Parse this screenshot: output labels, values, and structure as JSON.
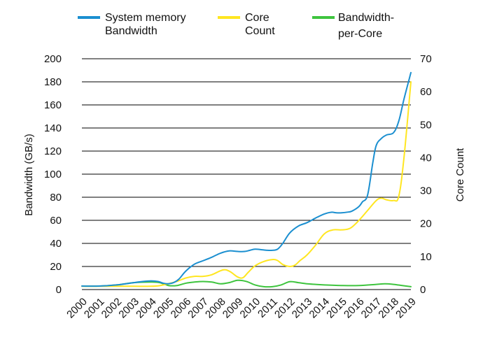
{
  "chart_data": {
    "type": "line",
    "title": "",
    "xlabel": "",
    "ylabel": "Bandwidth (GB/s)",
    "ylabel_right": "Core Count",
    "ylim": [
      0,
      200
    ],
    "ylim_right": [
      0,
      70
    ],
    "yticks": [
      "0",
      "20",
      "40",
      "60",
      "80",
      "100",
      "120",
      "140",
      "160",
      "180",
      "200"
    ],
    "yticks_right": [
      "0",
      "10",
      "20",
      "30",
      "40",
      "50",
      "60",
      "70"
    ],
    "categories": [
      "2000",
      "2001",
      "2002",
      "2003",
      "2004",
      "2005",
      "2006",
      "2007",
      "2008",
      "2009",
      "2010",
      "2011",
      "2012",
      "2013",
      "2014",
      "2015",
      "2016",
      "2017",
      "2018",
      "2019"
    ],
    "grid": true,
    "legend_position": "top",
    "series": [
      {
        "name": "System memory Bandwidth",
        "legend_lines": [
          "System memory",
          "Bandwidth"
        ],
        "color": "#1b8fd0",
        "axis": "left",
        "x": [
          2000,
          2001,
          2002,
          2003,
          2003.5,
          2004,
          2004.4,
          2004.7,
          2005,
          2005.3,
          2005.6,
          2006,
          2006.5,
          2007,
          2007.5,
          2008,
          2008.5,
          2009,
          2009.4,
          2009.7,
          2010,
          2010.4,
          2010.7,
          2011,
          2011.3,
          2011.6,
          2012,
          2012.5,
          2013,
          2013.5,
          2014,
          2014.4,
          2014.7,
          2015,
          2015.3,
          2015.6,
          2016,
          2016.2,
          2016.5,
          2016.8,
          2017,
          2017.3,
          2017.6,
          2018,
          2018.3,
          2018.6,
          2019
        ],
        "values": [
          3,
          3,
          4,
          6,
          7,
          7.5,
          7,
          5.5,
          5,
          6,
          9,
          16,
          22,
          25,
          28,
          31.5,
          33.5,
          33,
          33,
          34,
          35,
          34.5,
          34,
          34,
          35,
          40,
          49,
          55,
          58,
          62,
          65.5,
          67,
          66.5,
          66.5,
          67,
          68,
          72,
          76,
          82,
          110,
          125,
          131,
          134,
          136,
          146,
          165,
          188
        ]
      },
      {
        "name": "Core Count",
        "legend_lines": [
          "Core",
          "Count"
        ],
        "color": "#ffe620",
        "axis": "right",
        "x": [
          2000,
          2001,
          2002,
          2003,
          2004,
          2004.5,
          2005,
          2005.5,
          2006,
          2006.5,
          2007,
          2007.5,
          2008,
          2008.3,
          2008.6,
          2009,
          2009.3,
          2009.6,
          2010,
          2010.5,
          2011,
          2011.3,
          2011.6,
          2012,
          2012.3,
          2012.6,
          2013,
          2013.5,
          2014,
          2014.5,
          2015,
          2015.5,
          2016,
          2016.5,
          2017,
          2017.3,
          2017.6,
          2018,
          2018.3,
          2018.6,
          2019
        ],
        "values": [
          1,
          1,
          1,
          1,
          1,
          1.2,
          1.8,
          2.5,
          3.5,
          4,
          4,
          4.5,
          5.7,
          6,
          5.3,
          3.8,
          3.6,
          5.2,
          7.2,
          8.5,
          9.1,
          8.8,
          7.6,
          7,
          7.4,
          8.8,
          10.5,
          13.5,
          16.9,
          18.1,
          18.1,
          18.6,
          21,
          24,
          27,
          27.7,
          27.2,
          27,
          28.3,
          40,
          63
        ]
      },
      {
        "name": "Bandwidth-per-Core",
        "legend_lines": [
          "Bandwidth-",
          "per-Core"
        ],
        "color": "#3ec43e",
        "axis": "left",
        "x": [
          2000,
          2001,
          2002,
          2003,
          2004,
          2004.5,
          2005,
          2005.5,
          2006,
          2006.5,
          2007,
          2007.5,
          2008,
          2008.5,
          2009,
          2009.5,
          2010,
          2010.5,
          2011,
          2011.5,
          2012,
          2012.5,
          2013,
          2013.5,
          2014,
          2015,
          2016,
          2017,
          2017.5,
          2018,
          2018.5,
          2019
        ],
        "values": [
          3,
          3,
          4,
          6,
          6.5,
          6,
          3.5,
          3.5,
          5.5,
          6.5,
          7,
          6.5,
          5,
          6,
          8,
          7,
          4,
          2.5,
          2.5,
          4,
          6.8,
          6,
          5,
          4.5,
          4,
          3.5,
          3.5,
          4.5,
          5,
          4.5,
          3.5,
          2.5
        ]
      }
    ]
  }
}
